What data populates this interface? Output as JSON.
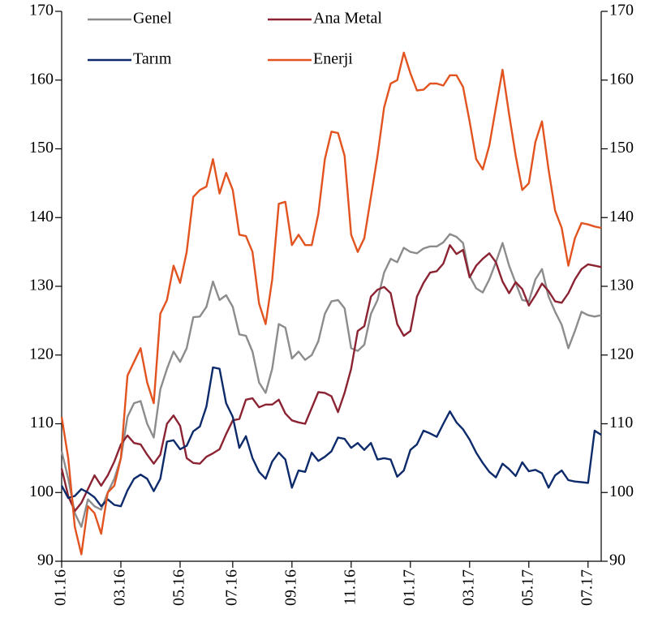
{
  "chart_data": {
    "type": "line",
    "categories": [
      "01.16",
      null,
      null,
      null,
      null,
      null,
      null,
      null,
      null,
      "03.16",
      null,
      null,
      null,
      null,
      null,
      null,
      null,
      null,
      "05.16",
      null,
      null,
      null,
      null,
      null,
      null,
      null,
      "07.16",
      null,
      null,
      null,
      null,
      null,
      null,
      null,
      null,
      "09.16",
      null,
      null,
      null,
      null,
      null,
      null,
      null,
      null,
      "11.16",
      null,
      null,
      null,
      null,
      null,
      null,
      null,
      null,
      "01.17",
      null,
      null,
      null,
      null,
      null,
      null,
      null,
      null,
      "03.17",
      null,
      null,
      null,
      null,
      null,
      null,
      null,
      null,
      "05.17",
      null,
      null,
      null,
      null,
      null,
      null,
      null,
      null,
      "07.17",
      null,
      null
    ],
    "series": [
      {
        "name": "Genel",
        "color": "#8c8c8c",
        "values": [
          106,
          102,
          97,
          95,
          99,
          98,
          97.5,
          100,
          102,
          105,
          111,
          113,
          113.3,
          110,
          108,
          115,
          118,
          120.5,
          119,
          121,
          125.5,
          125.6,
          127,
          130.7,
          128,
          128.7,
          127,
          123,
          122.8,
          120.5,
          116,
          114.5,
          118,
          124.5,
          124,
          119.5,
          120.5,
          119.3,
          120,
          122,
          126,
          127.8,
          128,
          126.8,
          121,
          120.6,
          121.5,
          126,
          128,
          132,
          134,
          133.5,
          135.6,
          135,
          134.8,
          135.5,
          135.8,
          135.8,
          136.4,
          137.6,
          137.2,
          136.3,
          131.5,
          129.7,
          129.1,
          131,
          133.5,
          136.3,
          133,
          130.5,
          128,
          127.8,
          131,
          132.5,
          128.5,
          126.3,
          124.4,
          121,
          123.5,
          126.3,
          125.8,
          125.6,
          125.8
        ]
      },
      {
        "name": "Ana Metal",
        "color": "#8b2332",
        "values": [
          103.5,
          99.5,
          97.3,
          98.5,
          100.5,
          102.5,
          101,
          102.5,
          104.5,
          107,
          108.3,
          107.2,
          107,
          105.5,
          104.2,
          105.5,
          110,
          111.2,
          109.7,
          105,
          104.3,
          104.2,
          105.2,
          105.7,
          106.3,
          108.5,
          110.5,
          110.7,
          113.5,
          113.7,
          112.4,
          112.8,
          112.8,
          113.5,
          111.5,
          110.5,
          110.2,
          110,
          112.3,
          114.6,
          114.5,
          114,
          111.7,
          114.5,
          118,
          123.5,
          124.2,
          128.5,
          129.5,
          129.9,
          129,
          124.5,
          122.8,
          123.5,
          128.5,
          130.5,
          132,
          132.2,
          133.3,
          136,
          134.7,
          135.3,
          131.3,
          133,
          134,
          134.8,
          133.5,
          130.7,
          129,
          130.6,
          129.6,
          127.2,
          128.7,
          130.4,
          129.3,
          127.8,
          127.6,
          129,
          131,
          132.5,
          133.2,
          133,
          132.8
        ]
      },
      {
        "name": "Tarım",
        "color": "#0d2a6b",
        "values": [
          101,
          99.2,
          99.5,
          100.5,
          100,
          99.3,
          98,
          99,
          98.2,
          98,
          100.3,
          102,
          102.6,
          102,
          100.2,
          102,
          107.4,
          107.6,
          106.3,
          106.8,
          108.9,
          109.6,
          112.5,
          118.2,
          118,
          113,
          111,
          106.5,
          108.2,
          105,
          103,
          102,
          104.5,
          105.8,
          104.8,
          100.7,
          103.2,
          103,
          105.8,
          104.6,
          105.2,
          106,
          108,
          107.8,
          106.5,
          107.2,
          106.2,
          107.2,
          104.8,
          105,
          104.8,
          102.3,
          103.2,
          106.2,
          107,
          109,
          108.6,
          108.1,
          110,
          111.8,
          110.2,
          109.2,
          107.7,
          105.8,
          104.3,
          103,
          102.2,
          104.2,
          103.4,
          102.4,
          104.4,
          103.1,
          103.3,
          102.8,
          100.7,
          102.5,
          103.2,
          101.8,
          101.6,
          101.5,
          101.4,
          109,
          108.4
        ]
      },
      {
        "name": "Enerji",
        "color": "#e2531f",
        "values": [
          111,
          105,
          95,
          91,
          98,
          97,
          94,
          100,
          101,
          105,
          117,
          119,
          121,
          116,
          113,
          126,
          128,
          133,
          130.5,
          135,
          143,
          144,
          144.5,
          148.5,
          143.5,
          146.5,
          144,
          137.5,
          137.3,
          135,
          127.5,
          124.5,
          131,
          142,
          142.3,
          136,
          137.5,
          136,
          136,
          140.5,
          148.5,
          152.5,
          152.3,
          149,
          137.5,
          135,
          137,
          143,
          149,
          156,
          159.5,
          160,
          164,
          161,
          158.5,
          158.6,
          159.5,
          159.5,
          159.2,
          160.7,
          160.7,
          159,
          154,
          148.5,
          147,
          150.5,
          156,
          161.5,
          155,
          149,
          144,
          145,
          151,
          154,
          147,
          141,
          138.5,
          133,
          137,
          139.2,
          139,
          138.7,
          138.5
        ]
      }
    ],
    "ylim": [
      90,
      170
    ],
    "yticks": [
      90,
      100,
      110,
      120,
      130,
      140,
      150,
      160,
      170
    ],
    "y2lim": [
      90,
      170
    ],
    "y2ticks": [
      90,
      100,
      110,
      120,
      130,
      140,
      150,
      160,
      170
    ]
  }
}
